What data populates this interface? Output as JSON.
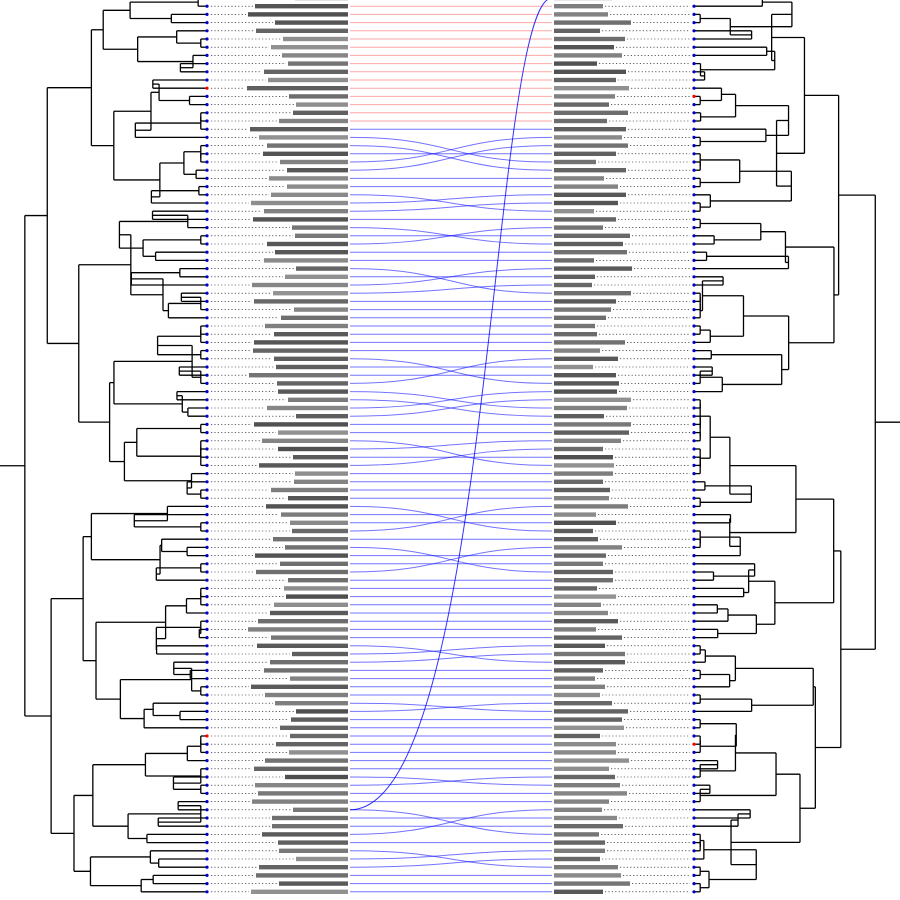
{
  "figure": {
    "type": "tanglegram",
    "colors": {
      "tree": "#000000",
      "connector_matched": "#0000ff",
      "connector_highlight": "#ff0000",
      "tip_default": "#0000cc",
      "tip_highlight": "#ff0000",
      "label_text": "#222222"
    },
    "tip_count": 110,
    "highlighted_tips": [
      0,
      1,
      2,
      3,
      4,
      5,
      6,
      7,
      8,
      9,
      10,
      11,
      12,
      13,
      14,
      15
    ],
    "long_crossing_edge": {
      "from_tip": 99,
      "to_tip": 0
    }
  }
}
